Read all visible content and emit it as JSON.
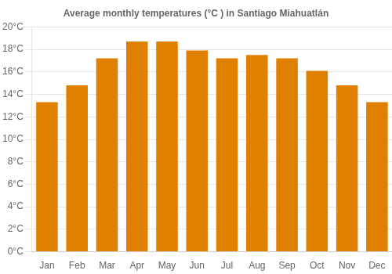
{
  "chart_data": {
    "type": "bar",
    "title": "Average monthly temperatures (°C ) in Santiago Miahuatlán",
    "categories": [
      "Jan",
      "Feb",
      "Mar",
      "Apr",
      "May",
      "Jun",
      "Jul",
      "Aug",
      "Sep",
      "Oct",
      "Nov",
      "Dec"
    ],
    "values": [
      13.3,
      14.8,
      17.2,
      18.7,
      18.7,
      17.9,
      17.2,
      17.5,
      17.2,
      16.1,
      14.8,
      13.3
    ],
    "color": "#E08000",
    "ylim": [
      0,
      20
    ],
    "yticks": [
      {
        "value": 0,
        "label": "0°C"
      },
      {
        "value": 2,
        "label": "2°C"
      },
      {
        "value": 4,
        "label": "4°C"
      },
      {
        "value": 6,
        "label": "6°C"
      },
      {
        "value": 8,
        "label": "8°C"
      },
      {
        "value": 10,
        "label": "10°C"
      },
      {
        "value": 12,
        "label": "12°C"
      },
      {
        "value": 14,
        "label": "14°C"
      },
      {
        "value": 16,
        "label": "16°C"
      },
      {
        "value": 18,
        "label": "18°C"
      },
      {
        "value": 20,
        "label": "20°C"
      }
    ],
    "grid": "y"
  }
}
